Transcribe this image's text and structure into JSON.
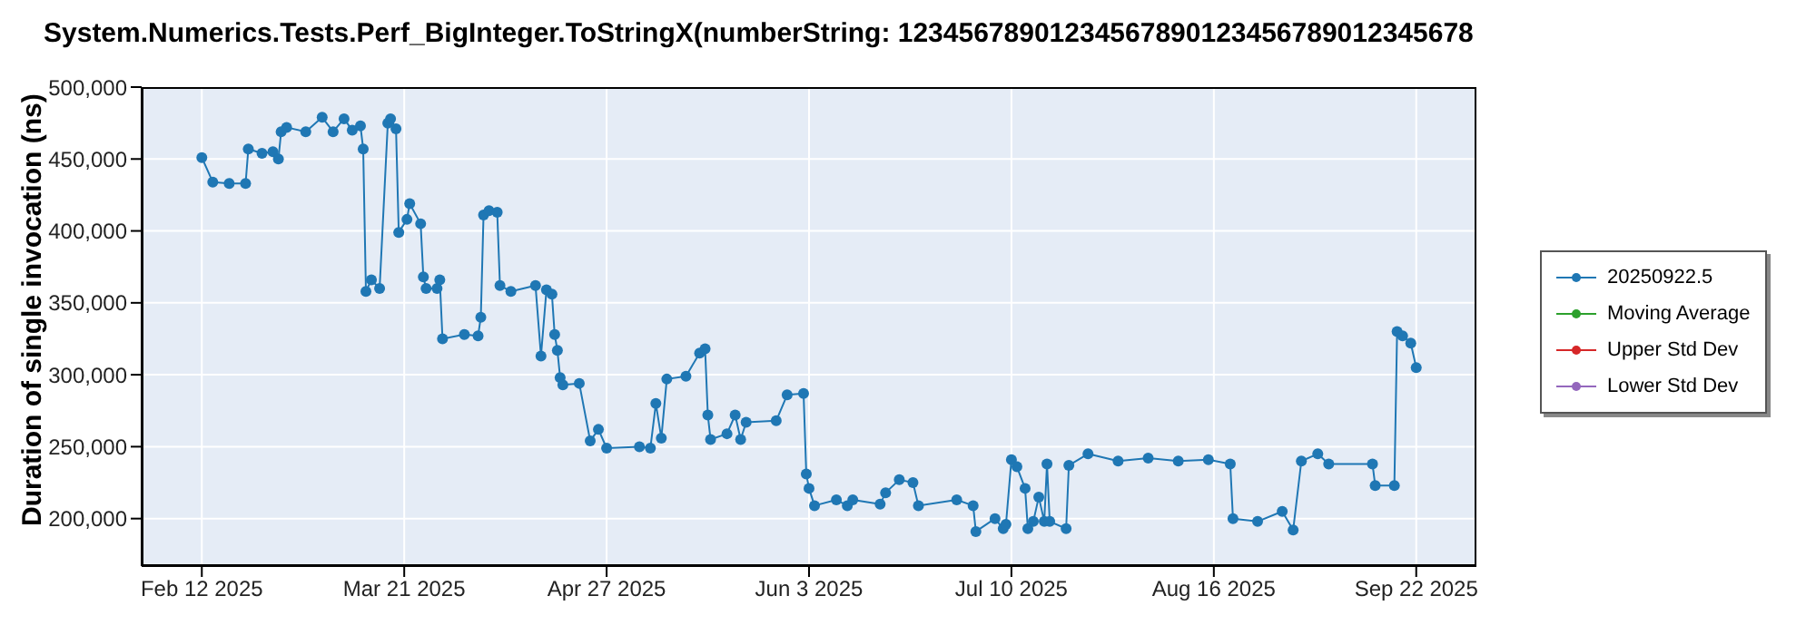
{
  "chart_data": {
    "type": "line",
    "title": "System.Numerics.Tests.Perf_BigInteger.ToStringX(numberString: 12345678901234567890123456789012345678",
    "ylabel": "Duration of single invocation (ns)",
    "xlim": [
      "2025-02-01",
      "2025-10-03"
    ],
    "xticks": [
      {
        "value": "2025-02-12",
        "label": "Feb 12 2025"
      },
      {
        "value": "2025-03-21",
        "label": "Mar 21 2025"
      },
      {
        "value": "2025-04-27",
        "label": "Apr 27 2025"
      },
      {
        "value": "2025-06-03",
        "label": "Jun 3 2025"
      },
      {
        "value": "2025-07-10",
        "label": "Jul 10 2025"
      },
      {
        "value": "2025-08-16",
        "label": "Aug 16 2025"
      },
      {
        "value": "2025-09-22",
        "label": "Sep 22 2025"
      }
    ],
    "ylim": [
      167000,
      500000
    ],
    "yticks": [
      {
        "value": 200000,
        "label": "200,000"
      },
      {
        "value": 250000,
        "label": "250,000"
      },
      {
        "value": 300000,
        "label": "300,000"
      },
      {
        "value": 350000,
        "label": "350,000"
      },
      {
        "value": 400000,
        "label": "400,000"
      },
      {
        "value": 450000,
        "label": "450,000"
      },
      {
        "value": 500000,
        "label": "500,000"
      }
    ],
    "grid": true,
    "legend": "right",
    "marker": "circle",
    "line_style": "solid",
    "series": [
      {
        "name": "20250922.5",
        "color": "#1f77b4",
        "x": [
          "2025-02-12",
          "2025-02-14",
          "2025-02-17",
          "2025-02-20",
          "2025-02-20T12:00",
          "2025-02-23",
          "2025-02-25",
          "2025-02-26",
          "2025-02-26T12:00",
          "2025-02-27T12:00",
          "2025-03-03",
          "2025-03-06",
          "2025-03-08",
          "2025-03-10",
          "2025-03-11T12:00",
          "2025-03-13",
          "2025-03-13T12:00",
          "2025-03-14",
          "2025-03-15",
          "2025-03-16T12:00",
          "2025-03-18",
          "2025-03-18T12:00",
          "2025-03-19T12:00",
          "2025-03-20",
          "2025-03-21T12:00",
          "2025-03-22",
          "2025-03-24",
          "2025-03-24T12:00",
          "2025-03-25",
          "2025-03-27",
          "2025-03-27T12:00",
          "2025-03-28",
          "2025-04-01",
          "2025-04-03T12:00",
          "2025-04-04",
          "2025-04-04T12:00",
          "2025-04-05T12:00",
          "2025-04-07",
          "2025-04-07T12:00",
          "2025-04-09T12:00",
          "2025-04-14",
          "2025-04-15",
          "2025-04-16",
          "2025-04-17",
          "2025-04-17T12:00",
          "2025-04-18",
          "2025-04-18T12:00",
          "2025-04-19",
          "2025-04-22",
          "2025-04-24",
          "2025-04-25T12:00",
          "2025-04-27",
          "2025-05-03",
          "2025-05-05",
          "2025-05-06",
          "2025-05-07",
          "2025-05-08",
          "2025-05-11T12:00",
          "2025-05-14",
          "2025-05-15",
          "2025-05-15T12:00",
          "2025-05-16",
          "2025-05-19",
          "2025-05-20T12:00",
          "2025-05-21T12:00",
          "2025-05-22T12:00",
          "2025-05-28",
          "2025-05-30",
          "2025-06-02",
          "2025-06-02T12:00",
          "2025-06-03",
          "2025-06-04",
          "2025-06-08",
          "2025-06-10",
          "2025-06-11",
          "2025-06-16",
          "2025-06-17",
          "2025-06-19T12:00",
          "2025-06-22",
          "2025-06-23",
          "2025-06-30",
          "2025-07-03",
          "2025-07-03T12:00",
          "2025-07-07",
          "2025-07-08T12:00",
          "2025-07-09",
          "2025-07-10",
          "2025-07-11",
          "2025-07-12T12:00",
          "2025-07-13",
          "2025-07-14",
          "2025-07-15",
          "2025-07-16",
          "2025-07-16T12:00",
          "2025-07-17",
          "2025-07-20",
          "2025-07-20T12:00",
          "2025-07-24",
          "2025-07-29T12:00",
          "2025-08-04",
          "2025-08-09T12:00",
          "2025-08-15",
          "2025-08-19",
          "2025-08-19T12:00",
          "2025-08-24",
          "2025-08-28T12:00",
          "2025-08-30T12:00",
          "2025-09-01",
          "2025-09-04",
          "2025-09-06",
          "2025-09-14",
          "2025-09-14T12:00",
          "2025-09-18",
          "2025-09-18T12:00",
          "2025-09-19T12:00",
          "2025-09-21",
          "2025-09-22"
        ],
        "values": [
          451000,
          434000,
          433000,
          433000,
          457000,
          454000,
          455000,
          450000,
          469000,
          472000,
          469000,
          479000,
          469000,
          478000,
          470000,
          473000,
          457000,
          358000,
          366000,
          360000,
          475000,
          478000,
          471000,
          399000,
          408000,
          419000,
          405000,
          368000,
          360000,
          360000,
          366000,
          325000,
          328000,
          327000,
          340000,
          411000,
          414000,
          413000,
          362000,
          358000,
          362000,
          313000,
          359000,
          356000,
          328000,
          317000,
          298000,
          293000,
          294000,
          254000,
          262000,
          249000,
          250000,
          249000,
          280000,
          256000,
          297000,
          299000,
          315000,
          318000,
          272000,
          255000,
          259000,
          272000,
          255000,
          267000,
          268000,
          286000,
          287000,
          231000,
          221000,
          209000,
          213000,
          209000,
          213000,
          210000,
          218000,
          227000,
          225000,
          209000,
          213000,
          209000,
          191000,
          200000,
          193000,
          196000,
          241000,
          236000,
          221000,
          193000,
          198000,
          215000,
          198000,
          238000,
          198000,
          193000,
          237000,
          245000,
          240000,
          242000,
          240000,
          241000,
          238000,
          200000,
          198000,
          205000,
          192000,
          240000,
          245000,
          238000,
          238000,
          223000,
          223000,
          330000,
          327000,
          322000,
          305000
        ]
      },
      {
        "name": "Moving Average",
        "color": "#2ca02c"
      },
      {
        "name": "Upper Std Dev",
        "color": "#d62728"
      },
      {
        "name": "Lower Std Dev",
        "color": "#9467bd"
      }
    ]
  }
}
